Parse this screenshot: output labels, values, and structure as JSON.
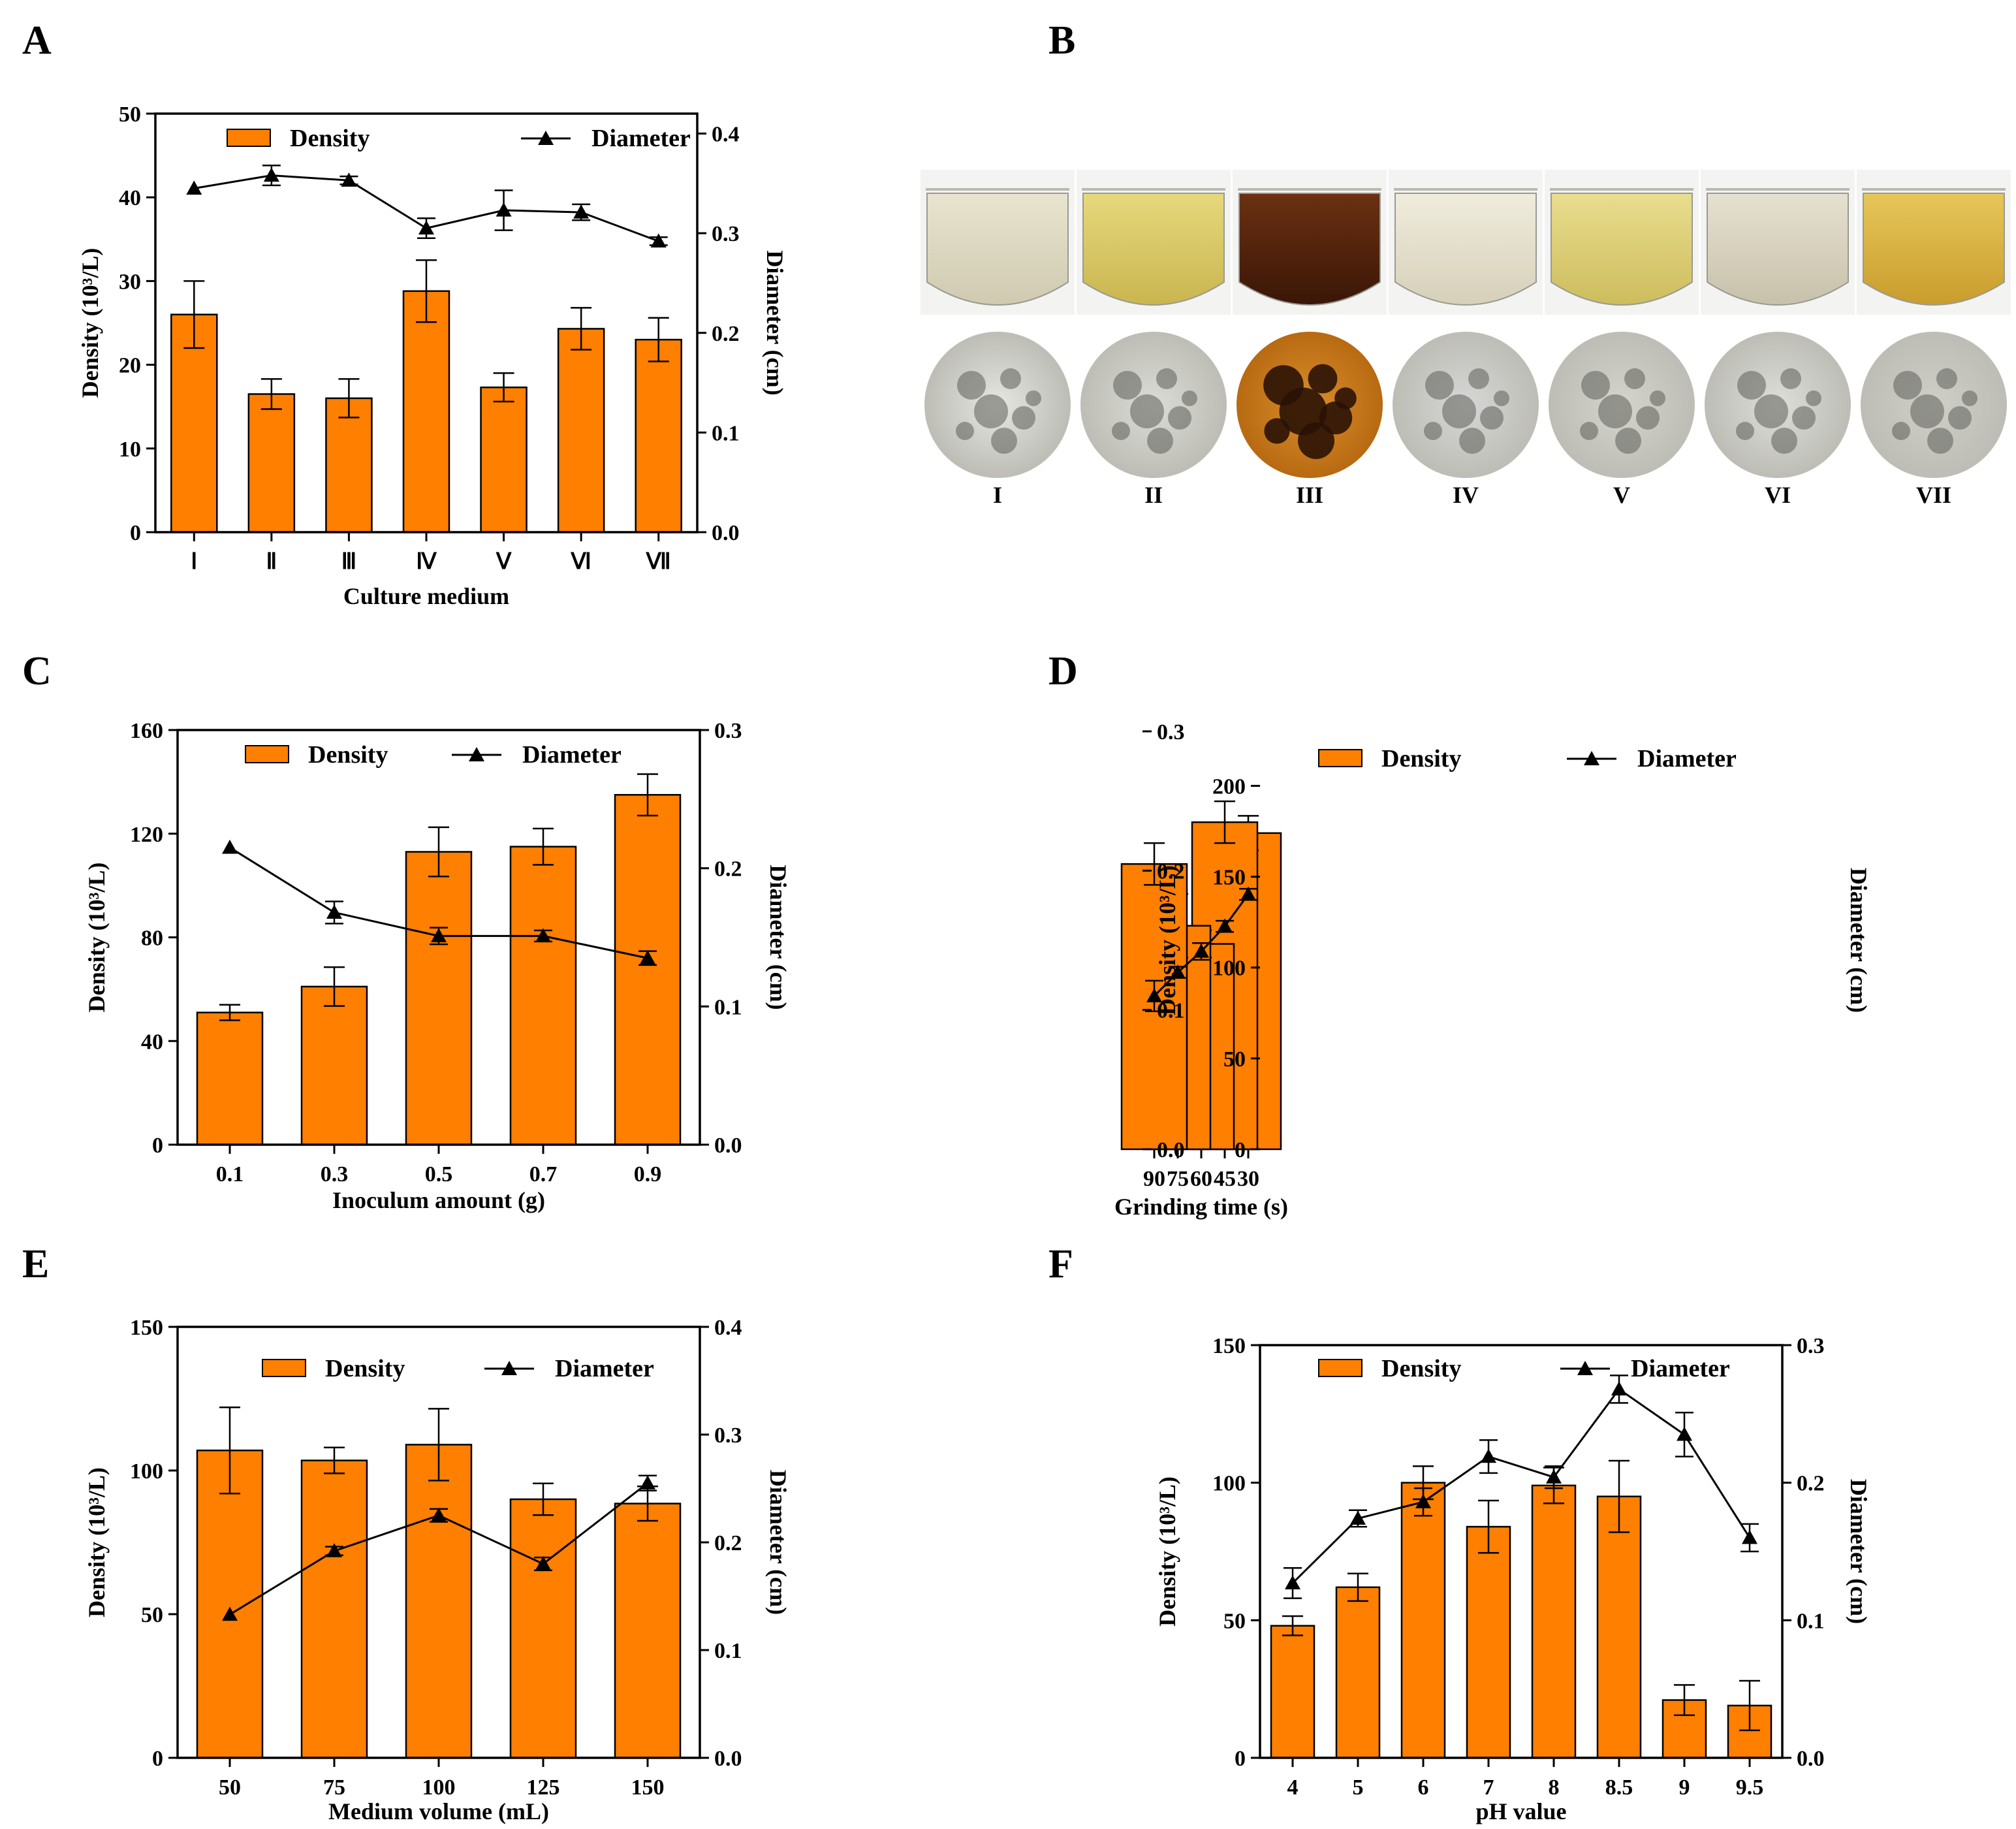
{
  "colors": {
    "bar": "#ff7f00",
    "bar_stroke": "#000000",
    "line": "#000000"
  },
  "legend": {
    "density": "Density",
    "diameter": "Diameter"
  },
  "left_axis_title": "Density (10³/L)",
  "right_axis_title": "Diameter (cm)",
  "panel_b": {
    "label": "B",
    "media": [
      "I",
      "II",
      "III",
      "IV",
      "V",
      "VI",
      "VII"
    ]
  },
  "chart_data": [
    {
      "panel": "A",
      "type": "bar",
      "xlabel": "Culture medium",
      "ylabel_left": "Density (10³/L)",
      "ylabel_right": "Diameter (cm)",
      "categories": [
        "Ⅰ",
        "Ⅱ",
        "Ⅲ",
        "Ⅳ",
        "Ⅴ",
        "Ⅵ",
        "Ⅶ"
      ],
      "ylim_left": [
        0,
        50
      ],
      "yticks_left": [
        "0",
        "10",
        "20",
        "30",
        "40",
        "50"
      ],
      "ylim_right": [
        0,
        0.42
      ],
      "yticks_right": [
        "0.0",
        "0.1",
        "0.2",
        "0.3",
        "0.4"
      ],
      "series": [
        {
          "name": "Density",
          "kind": "bar",
          "values": [
            26.0,
            16.5,
            16.0,
            28.8,
            17.3,
            24.3,
            23.0
          ],
          "errors": [
            4.0,
            1.8,
            2.3,
            3.7,
            1.7,
            2.5,
            2.6
          ]
        },
        {
          "name": "Diameter",
          "kind": "line",
          "values": [
            0.345,
            0.358,
            0.353,
            0.305,
            0.323,
            0.321,
            0.292
          ],
          "errors": [
            0.0,
            0.01,
            0.004,
            0.01,
            0.02,
            0.008,
            0.004
          ]
        }
      ]
    },
    {
      "panel": "C",
      "type": "bar",
      "xlabel": "Inoculum amount (g)",
      "ylabel_left": "Density (10³/L)",
      "ylabel_right": "Diameter (cm)",
      "categories": [
        "0.1",
        "0.3",
        "0.5",
        "0.7",
        "0.9"
      ],
      "ylim_left": [
        0,
        160
      ],
      "yticks_left": [
        "0",
        "40",
        "80",
        "120",
        "160"
      ],
      "ylim_right": [
        0,
        0.3
      ],
      "yticks_right": [
        "0.0",
        "0.1",
        "0.2",
        "0.3"
      ],
      "series": [
        {
          "name": "Density",
          "kind": "bar",
          "values": [
            51,
            61,
            113,
            115,
            135
          ],
          "errors": [
            3,
            7.5,
            9.5,
            7,
            8
          ]
        },
        {
          "name": "Diameter",
          "kind": "line",
          "values": [
            0.215,
            0.168,
            0.151,
            0.151,
            0.135
          ],
          "errors": [
            0.0,
            0.008,
            0.006,
            0.004,
            0.005
          ]
        }
      ]
    },
    {
      "panel": "D",
      "type": "bar",
      "xlabel": "Grinding time (s)",
      "ylabel_left": "Density (10³/L)",
      "ylabel_right": "Diameter (cm)",
      "categories": [
        "30",
        "45",
        "60",
        "75",
        "90"
      ],
      "ylim_left": [
        0,
        230
      ],
      "yticks_left": [
        "0",
        "50",
        "100",
        "150",
        "200"
      ],
      "ylim_right": [
        0,
        0.3
      ],
      "yticks_right": [
        "0.0",
        "0.1",
        "0.2",
        "0.3"
      ],
      "series": [
        {
          "name": "Density",
          "kind": "bar",
          "values": [
            174,
            180,
            113,
            123,
            157
          ],
          "errors": [
            9.5,
            11.5,
            7.5,
            17.5,
            11.5
          ]
        },
        {
          "name": "Diameter",
          "kind": "line",
          "values": [
            0.183,
            0.16,
            0.142,
            0.127,
            0.11
          ],
          "errors": [
            0.004,
            0.004,
            0.006,
            0.004,
            0.011
          ]
        }
      ]
    },
    {
      "panel": "E",
      "type": "bar",
      "xlabel": "Medium volume (mL)",
      "ylabel_left": "Density (10³/L)",
      "ylabel_right": "Diameter (cm)",
      "categories": [
        "50",
        "75",
        "100",
        "125",
        "150"
      ],
      "ylim_left": [
        0,
        150
      ],
      "yticks_left": [
        "0",
        "50",
        "100",
        "150"
      ],
      "ylim_right": [
        0,
        0.4
      ],
      "yticks_right": [
        "0.0",
        "0.1",
        "0.2",
        "0.3",
        "0.4"
      ],
      "series": [
        {
          "name": "Density",
          "kind": "bar",
          "values": [
            107,
            103.5,
            109,
            90,
            88.5
          ],
          "errors": [
            15,
            4.5,
            12.5,
            5.5,
            6
          ]
        },
        {
          "name": "Diameter",
          "kind": "line",
          "values": [
            0.133,
            0.192,
            0.225,
            0.18,
            0.255
          ],
          "errors": [
            0.0,
            0.004,
            0.006,
            0.006,
            0.007
          ]
        }
      ]
    },
    {
      "panel": "F",
      "type": "bar",
      "xlabel": "pH value",
      "ylabel_left": "Density (10³/L)",
      "ylabel_right": "Diameter (cm)",
      "categories": [
        "4",
        "5",
        "6",
        "7",
        "8",
        "8.5",
        "9",
        "9.5"
      ],
      "ylim_left": [
        0,
        150
      ],
      "yticks_left": [
        "0",
        "50",
        "100",
        "150"
      ],
      "ylim_right": [
        0,
        0.3
      ],
      "yticks_right": [
        "0.0",
        "0.1",
        "0.2",
        "0.3"
      ],
      "series": [
        {
          "name": "Density",
          "kind": "bar",
          "values": [
            48,
            62,
            100,
            84,
            99,
            95,
            21,
            19
          ],
          "errors": [
            3.5,
            5,
            6,
            9.5,
            6.5,
            13,
            5.5,
            9
          ]
        },
        {
          "name": "Diameter",
          "kind": "line",
          "values": [
            0.127,
            0.174,
            0.186,
            0.219,
            0.204,
            0.268,
            0.235,
            0.16
          ],
          "errors": [
            0.011,
            0.006,
            0.01,
            0.012,
            0.008,
            0.01,
            0.016,
            0.01
          ]
        }
      ]
    }
  ]
}
